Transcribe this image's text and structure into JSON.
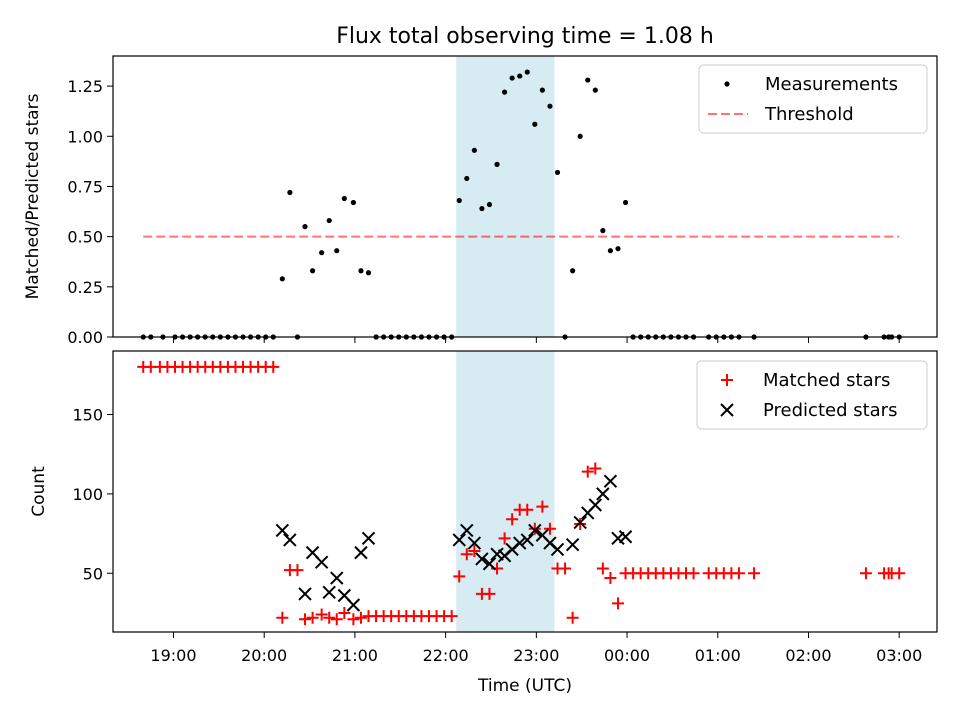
{
  "chart_data": [
    {
      "type": "scatter",
      "title": "Flux total observing time = 1.08 h",
      "xlabel": "",
      "ylabel": "Matched/Predicted stars",
      "ylim": [
        0.0,
        1.4
      ],
      "yticks": [
        "0.00",
        "0.25",
        "0.50",
        "0.75",
        "1.00",
        "1.25"
      ],
      "shaded_interval": {
        "from": "22:07",
        "to": "23:12",
        "color": "#add8e6"
      },
      "legend": {
        "placement": "top-right",
        "entries": [
          "Measurements",
          "Threshold"
        ]
      },
      "threshold": {
        "name": "Threshold",
        "y": 0.5,
        "from": "18:40",
        "to": "03:00",
        "color": "#ff0000",
        "style": "dashed"
      },
      "series": [
        {
          "name": "Measurements",
          "color": "#000000",
          "marker": "dot",
          "points": [
            [
              "18:40",
              0
            ],
            [
              "18:45",
              0
            ],
            [
              "18:53",
              0
            ],
            [
              "19:01",
              0
            ],
            [
              "19:06",
              0
            ],
            [
              "19:11",
              0
            ],
            [
              "19:16",
              0
            ],
            [
              "19:21",
              0
            ],
            [
              "19:26",
              0
            ],
            [
              "19:31",
              0
            ],
            [
              "19:36",
              0
            ],
            [
              "19:41",
              0
            ],
            [
              "19:46",
              0
            ],
            [
              "19:51",
              0
            ],
            [
              "19:56",
              0
            ],
            [
              "20:01",
              0
            ],
            [
              "20:06",
              0
            ],
            [
              "20:12",
              0.29
            ],
            [
              "20:17",
              0.72
            ],
            [
              "20:22",
              0
            ],
            [
              "20:27",
              0.55
            ],
            [
              "20:32",
              0.33
            ],
            [
              "20:38",
              0.42
            ],
            [
              "20:43",
              0.58
            ],
            [
              "20:48",
              0.43
            ],
            [
              "20:53",
              0.69
            ],
            [
              "20:59",
              0.67
            ],
            [
              "21:04",
              0.33
            ],
            [
              "21:09",
              0.32
            ],
            [
              "21:14",
              0
            ],
            [
              "21:19",
              0
            ],
            [
              "21:24",
              0
            ],
            [
              "21:29",
              0
            ],
            [
              "21:34",
              0
            ],
            [
              "21:39",
              0
            ],
            [
              "21:44",
              0
            ],
            [
              "21:49",
              0
            ],
            [
              "21:54",
              0
            ],
            [
              "21:59",
              0
            ],
            [
              "22:04",
              0
            ],
            [
              "22:09",
              0.68
            ],
            [
              "22:14",
              0.79
            ],
            [
              "22:19",
              0.93
            ],
            [
              "22:24",
              0.64
            ],
            [
              "22:29",
              0.66
            ],
            [
              "22:34",
              0.86
            ],
            [
              "22:39",
              1.22
            ],
            [
              "22:44",
              1.29
            ],
            [
              "22:49",
              1.3
            ],
            [
              "22:54",
              1.32
            ],
            [
              "22:59",
              1.06
            ],
            [
              "23:04",
              1.23
            ],
            [
              "23:09",
              1.15
            ],
            [
              "23:14",
              0.82
            ],
            [
              "23:19",
              0
            ],
            [
              "23:24",
              0.33
            ],
            [
              "23:29",
              1.0
            ],
            [
              "23:34",
              1.28
            ],
            [
              "23:39",
              1.23
            ],
            [
              "23:44",
              0.53
            ],
            [
              "23:49",
              0.43
            ],
            [
              "23:54",
              0.44
            ],
            [
              "23:59",
              0.67
            ],
            [
              "00:04",
              0
            ],
            [
              "00:09",
              0
            ],
            [
              "00:14",
              0
            ],
            [
              "00:19",
              0
            ],
            [
              "00:24",
              0
            ],
            [
              "00:29",
              0
            ],
            [
              "00:34",
              0
            ],
            [
              "00:39",
              0
            ],
            [
              "00:44",
              0
            ],
            [
              "00:54",
              0
            ],
            [
              "00:59",
              0
            ],
            [
              "01:04",
              0
            ],
            [
              "01:09",
              0
            ],
            [
              "01:14",
              0
            ],
            [
              "01:24",
              0
            ],
            [
              "02:38",
              0
            ],
            [
              "02:50",
              0
            ],
            [
              "02:53",
              0
            ],
            [
              "02:55",
              0
            ],
            [
              "03:00",
              0
            ]
          ]
        }
      ]
    },
    {
      "type": "scatter",
      "title": "",
      "xlabel": "Time (UTC)",
      "ylabel": "Count",
      "ylim": [
        13,
        190
      ],
      "yticks": [
        "50",
        "100",
        "150"
      ],
      "xticks": [
        "19:00",
        "20:00",
        "21:00",
        "22:00",
        "23:00",
        "00:00",
        "01:00",
        "02:00",
        "03:00"
      ],
      "shaded_interval": {
        "from": "22:07",
        "to": "23:12",
        "color": "#add8e6"
      },
      "legend": {
        "placement": "top-right",
        "entries": [
          "Matched stars",
          "Predicted stars"
        ]
      },
      "series": [
        {
          "name": "Matched stars",
          "color": "#ff0000",
          "marker": "plus",
          "points": [
            [
              "18:40",
              180
            ],
            [
              "18:45",
              180
            ],
            [
              "18:51",
              180
            ],
            [
              "18:56",
              180
            ],
            [
              "19:01",
              180
            ],
            [
              "19:06",
              180
            ],
            [
              "19:11",
              180
            ],
            [
              "19:16",
              180
            ],
            [
              "19:21",
              180
            ],
            [
              "19:26",
              180
            ],
            [
              "19:31",
              180
            ],
            [
              "19:36",
              180
            ],
            [
              "19:41",
              180
            ],
            [
              "19:46",
              180
            ],
            [
              "19:51",
              180
            ],
            [
              "19:56",
              180
            ],
            [
              "20:01",
              180
            ],
            [
              "20:06",
              180
            ],
            [
              "20:12",
              22
            ],
            [
              "20:17",
              52
            ],
            [
              "20:22",
              52
            ],
            [
              "20:27",
              21
            ],
            [
              "20:32",
              22
            ],
            [
              "20:38",
              24
            ],
            [
              "20:43",
              22
            ],
            [
              "20:48",
              21
            ],
            [
              "20:53",
              25
            ],
            [
              "20:59",
              21
            ],
            [
              "21:04",
              22
            ],
            [
              "21:09",
              23
            ],
            [
              "21:14",
              23
            ],
            [
              "21:19",
              23
            ],
            [
              "21:24",
              23
            ],
            [
              "21:29",
              23
            ],
            [
              "21:34",
              23
            ],
            [
              "21:39",
              23
            ],
            [
              "21:44",
              23
            ],
            [
              "21:49",
              23
            ],
            [
              "21:54",
              23
            ],
            [
              "21:59",
              23
            ],
            [
              "22:04",
              23
            ],
            [
              "22:09",
              48
            ],
            [
              "22:14",
              62
            ],
            [
              "22:19",
              64
            ],
            [
              "22:24",
              37
            ],
            [
              "22:29",
              37
            ],
            [
              "22:34",
              53
            ],
            [
              "22:39",
              72
            ],
            [
              "22:44",
              84
            ],
            [
              "22:49",
              90
            ],
            [
              "22:54",
              90
            ],
            [
              "22:59",
              78
            ],
            [
              "23:04",
              92
            ],
            [
              "23:09",
              78
            ],
            [
              "23:14",
              53
            ],
            [
              "23:19",
              53
            ],
            [
              "23:24",
              22
            ],
            [
              "23:29",
              81
            ],
            [
              "23:34",
              114
            ],
            [
              "23:39",
              116
            ],
            [
              "23:44",
              53
            ],
            [
              "23:49",
              47
            ],
            [
              "23:54",
              31
            ],
            [
              "23:59",
              50
            ],
            [
              "00:04",
              50
            ],
            [
              "00:09",
              50
            ],
            [
              "00:14",
              50
            ],
            [
              "00:19",
              50
            ],
            [
              "00:24",
              50
            ],
            [
              "00:29",
              50
            ],
            [
              "00:34",
              50
            ],
            [
              "00:39",
              50
            ],
            [
              "00:44",
              50
            ],
            [
              "00:54",
              50
            ],
            [
              "00:59",
              50
            ],
            [
              "01:04",
              50
            ],
            [
              "01:09",
              50
            ],
            [
              "01:14",
              50
            ],
            [
              "01:24",
              50
            ],
            [
              "02:38",
              50
            ],
            [
              "02:50",
              50
            ],
            [
              "02:53",
              50
            ],
            [
              "02:55",
              50
            ],
            [
              "03:00",
              50
            ]
          ]
        },
        {
          "name": "Predicted stars",
          "color": "#000000",
          "marker": "x",
          "points": [
            [
              "20:12",
              77
            ],
            [
              "20:17",
              71
            ],
            [
              "20:27",
              37
            ],
            [
              "20:32",
              63
            ],
            [
              "20:38",
              57
            ],
            [
              "20:43",
              38
            ],
            [
              "20:48",
              47
            ],
            [
              "20:53",
              36
            ],
            [
              "20:59",
              30
            ],
            [
              "21:04",
              63
            ],
            [
              "21:09",
              72
            ],
            [
              "22:09",
              71
            ],
            [
              "22:14",
              77
            ],
            [
              "22:19",
              69
            ],
            [
              "22:24",
              59
            ],
            [
              "22:29",
              56
            ],
            [
              "22:34",
              62
            ],
            [
              "22:39",
              61
            ],
            [
              "22:44",
              65
            ],
            [
              "22:49",
              69
            ],
            [
              "22:54",
              71
            ],
            [
              "22:59",
              77
            ],
            [
              "23:04",
              74
            ],
            [
              "23:09",
              69
            ],
            [
              "23:14",
              65
            ],
            [
              "23:24",
              68
            ],
            [
              "23:29",
              82
            ],
            [
              "23:34",
              88
            ],
            [
              "23:39",
              93
            ],
            [
              "23:44",
              100
            ],
            [
              "23:49",
              108
            ],
            [
              "23:54",
              72
            ],
            [
              "23:59",
              73
            ]
          ]
        }
      ]
    }
  ]
}
